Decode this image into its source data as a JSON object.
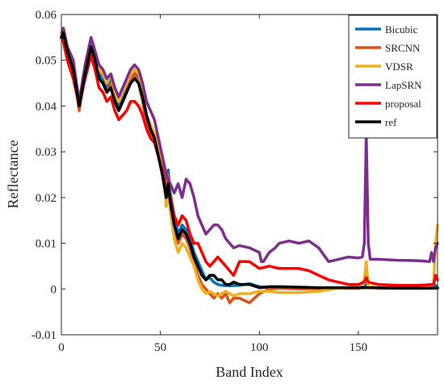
{
  "chart_data": {
    "type": "line",
    "title": "",
    "xlabel": "Band Index",
    "ylabel": "Reflectance",
    "xlim": [
      0,
      190
    ],
    "ylim": [
      -0.01,
      0.06
    ],
    "xticks": [
      0,
      50,
      100,
      150
    ],
    "xtick_labels": [
      "0",
      "50",
      "100",
      "150"
    ],
    "yticks": [
      -0.01,
      0,
      0.01,
      0.02,
      0.03,
      0.04,
      0.05,
      0.06
    ],
    "ytick_labels": [
      "-0.01",
      "0",
      "0.01",
      "0.02",
      "0.03",
      "0.04",
      "0.05",
      "0.06"
    ],
    "grid": false,
    "legend_position": "top-right",
    "series": [
      {
        "name": "Bicubic",
        "color": "#0072BD",
        "x": [
          0,
          1,
          3,
          6,
          9,
          12,
          15,
          17,
          19,
          21,
          23,
          25,
          27,
          29,
          31,
          33,
          35,
          37,
          39,
          41,
          43,
          45,
          47,
          49,
          51,
          53,
          54,
          55,
          57,
          59,
          61,
          63,
          65,
          67,
          69,
          71,
          73,
          75,
          77,
          79,
          81,
          85,
          90,
          95,
          100,
          105,
          110,
          120,
          130,
          140,
          150,
          153,
          154,
          155,
          160,
          170,
          180,
          188,
          189,
          190
        ],
        "y": [
          0.055,
          0.056,
          0.052,
          0.049,
          0.04,
          0.048,
          0.054,
          0.05,
          0.047,
          0.046,
          0.044,
          0.046,
          0.042,
          0.04,
          0.042,
          0.044,
          0.047,
          0.048,
          0.046,
          0.042,
          0.037,
          0.035,
          0.034,
          0.031,
          0.027,
          0.022,
          0.026,
          0.021,
          0.016,
          0.012,
          0.014,
          0.013,
          0.011,
          0.008,
          0.006,
          0.004,
          0.002,
          0.0025,
          0.0015,
          0.001,
          0.0008,
          0.0007,
          0.0008,
          0.0012,
          0.0005,
          0.0003,
          0.0002,
          0.0001,
          0.0001,
          0.0002,
          0.0003,
          0.0005,
          0.001,
          0.0004,
          0.0002,
          0.0002,
          0.0002,
          0.0003,
          0.0008,
          0.0004
        ]
      },
      {
        "name": "SRCNN",
        "color": "#D95319",
        "x": [
          0,
          1,
          3,
          6,
          9,
          12,
          15,
          17,
          19,
          21,
          23,
          25,
          27,
          29,
          31,
          33,
          35,
          37,
          39,
          41,
          43,
          45,
          47,
          49,
          51,
          53,
          54,
          55,
          57,
          59,
          61,
          63,
          65,
          67,
          69,
          71,
          73,
          75,
          77,
          79,
          81,
          83,
          85,
          87,
          90,
          95,
          100,
          105,
          110,
          120,
          130,
          140,
          150,
          154,
          160,
          170,
          180,
          188,
          190
        ],
        "y": [
          0.055,
          0.057,
          0.051,
          0.048,
          0.039,
          0.047,
          0.053,
          0.049,
          0.046,
          0.045,
          0.043,
          0.045,
          0.041,
          0.039,
          0.041,
          0.043,
          0.046,
          0.047,
          0.045,
          0.041,
          0.036,
          0.034,
          0.033,
          0.03,
          0.026,
          0.021,
          0.025,
          0.02,
          0.014,
          0.01,
          0.012,
          0.011,
          0.009,
          0.006,
          0.003,
          0.001,
          0.0,
          -0.001,
          -0.002,
          -0.001,
          -0.002,
          -0.001,
          -0.003,
          -0.002,
          -0.002,
          -0.003,
          -0.001,
          0.0,
          0.0002,
          0.0,
          0.0001,
          0.0002,
          0.0002,
          0.0004,
          0.0002,
          0.0002,
          0.0002,
          0.0002,
          0.0002
        ]
      },
      {
        "name": "VDSR",
        "color": "#EDB120",
        "x": [
          0,
          1,
          3,
          6,
          9,
          12,
          15,
          17,
          19,
          21,
          23,
          25,
          27,
          29,
          31,
          33,
          35,
          37,
          39,
          41,
          43,
          45,
          47,
          49,
          51,
          53,
          54,
          55,
          57,
          59,
          61,
          63,
          65,
          67,
          69,
          71,
          73,
          75,
          77,
          79,
          81,
          83,
          85,
          87,
          90,
          95,
          100,
          105,
          110,
          120,
          130,
          140,
          150,
          153,
          154,
          155,
          160,
          170,
          180,
          188,
          189,
          190
        ],
        "y": [
          0.056,
          0.057,
          0.053,
          0.049,
          0.041,
          0.048,
          0.054,
          0.051,
          0.048,
          0.047,
          0.045,
          0.047,
          0.043,
          0.041,
          0.043,
          0.045,
          0.047,
          0.048,
          0.047,
          0.044,
          0.038,
          0.036,
          0.034,
          0.031,
          0.027,
          0.018,
          0.022,
          0.017,
          0.011,
          0.008,
          0.01,
          0.009,
          0.007,
          0.005,
          0.002,
          0.0,
          -0.001,
          -0.0005,
          -0.001,
          -0.0015,
          -0.001,
          -0.0005,
          -0.001,
          -0.0015,
          -0.001,
          -0.001,
          -0.0005,
          -0.0005,
          -0.0008,
          -0.0008,
          -0.0005,
          0.0002,
          0.0005,
          0.002,
          0.006,
          0.0005,
          0.0003,
          0.0003,
          0.0003,
          0.001,
          0.01,
          0.014
        ]
      },
      {
        "name": "LapSRN",
        "color": "#7E2F8E",
        "x": [
          0,
          1,
          3,
          6,
          9,
          12,
          15,
          17,
          19,
          21,
          23,
          25,
          27,
          29,
          31,
          33,
          35,
          37,
          39,
          41,
          43,
          45,
          47,
          49,
          51,
          53,
          55,
          57,
          59,
          61,
          63,
          65,
          67,
          69,
          71,
          73,
          75,
          77,
          79,
          81,
          83,
          85,
          87,
          90,
          95,
          100,
          101,
          102,
          105,
          108,
          110,
          115,
          120,
          125,
          130,
          135,
          140,
          145,
          150,
          152,
          153,
          154,
          155,
          156,
          160,
          170,
          180,
          186,
          187,
          188,
          189,
          190
        ],
        "y": [
          0.055,
          0.057,
          0.053,
          0.05,
          0.041,
          0.049,
          0.055,
          0.052,
          0.049,
          0.048,
          0.046,
          0.047,
          0.044,
          0.042,
          0.044,
          0.046,
          0.048,
          0.049,
          0.048,
          0.045,
          0.041,
          0.039,
          0.037,
          0.033,
          0.029,
          0.025,
          0.023,
          0.021,
          0.023,
          0.02,
          0.024,
          0.023,
          0.02,
          0.016,
          0.014,
          0.012,
          0.013,
          0.014,
          0.014,
          0.013,
          0.011,
          0.01,
          0.009,
          0.0095,
          0.009,
          0.008,
          0.006,
          0.006,
          0.008,
          0.009,
          0.01,
          0.0105,
          0.01,
          0.0105,
          0.009,
          0.006,
          0.0065,
          0.007,
          0.0068,
          0.007,
          0.01,
          0.034,
          0.01,
          0.0065,
          0.0065,
          0.0063,
          0.0062,
          0.006,
          0.008,
          0.006,
          0.009,
          0.01
        ]
      },
      {
        "name": "proposal",
        "color": "#FF0000",
        "x": [
          0,
          1,
          3,
          6,
          9,
          12,
          15,
          17,
          19,
          21,
          23,
          25,
          27,
          29,
          31,
          33,
          35,
          37,
          39,
          41,
          43,
          45,
          47,
          49,
          51,
          53,
          55,
          57,
          59,
          61,
          63,
          65,
          67,
          69,
          71,
          73,
          75,
          77,
          79,
          81,
          83,
          85,
          87,
          90,
          95,
          100,
          105,
          110,
          115,
          120,
          125,
          130,
          135,
          140,
          145,
          150,
          153,
          154,
          155,
          160,
          170,
          180,
          188,
          189,
          190
        ],
        "y": [
          0.055,
          0.054,
          0.05,
          0.046,
          0.04,
          0.046,
          0.051,
          0.048,
          0.044,
          0.043,
          0.041,
          0.042,
          0.039,
          0.037,
          0.038,
          0.039,
          0.041,
          0.041,
          0.04,
          0.038,
          0.035,
          0.033,
          0.032,
          0.029,
          0.026,
          0.021,
          0.02,
          0.016,
          0.014,
          0.016,
          0.015,
          0.012,
          0.01,
          0.01,
          0.008,
          0.006,
          0.005,
          0.006,
          0.007,
          0.006,
          0.005,
          0.004,
          0.003,
          0.006,
          0.006,
          0.0045,
          0.005,
          0.0045,
          0.0045,
          0.0045,
          0.004,
          0.003,
          0.002,
          0.0015,
          0.001,
          0.001,
          0.0015,
          0.0025,
          0.0015,
          0.001,
          0.0008,
          0.0008,
          0.001,
          0.003,
          0.002
        ]
      },
      {
        "name": "ref",
        "color": "#000000",
        "x": [
          0,
          1,
          3,
          6,
          9,
          12,
          15,
          17,
          19,
          21,
          23,
          25,
          27,
          29,
          31,
          33,
          35,
          37,
          39,
          41,
          43,
          45,
          47,
          49,
          51,
          53,
          54,
          55,
          57,
          59,
          61,
          63,
          65,
          67,
          69,
          71,
          73,
          75,
          77,
          79,
          81,
          83,
          85,
          87,
          90,
          95,
          100,
          105,
          110,
          120,
          130,
          140,
          150,
          155,
          160,
          170,
          180,
          188,
          190
        ],
        "y": [
          0.055,
          0.056,
          0.052,
          0.048,
          0.04,
          0.047,
          0.053,
          0.05,
          0.046,
          0.045,
          0.043,
          0.044,
          0.041,
          0.039,
          0.041,
          0.043,
          0.045,
          0.046,
          0.045,
          0.042,
          0.038,
          0.035,
          0.033,
          0.029,
          0.025,
          0.02,
          0.023,
          0.019,
          0.014,
          0.011,
          0.013,
          0.012,
          0.01,
          0.007,
          0.005,
          0.003,
          0.002,
          0.003,
          0.003,
          0.002,
          0.002,
          0.001,
          0.001,
          0.0015,
          0.001,
          0.001,
          0.0003,
          0.0005,
          0.0005,
          0.0004,
          0.0003,
          0.0003,
          0.0003,
          0.0003,
          0.0003,
          0.0002,
          0.0002,
          0.0002,
          0.0002
        ]
      }
    ]
  }
}
